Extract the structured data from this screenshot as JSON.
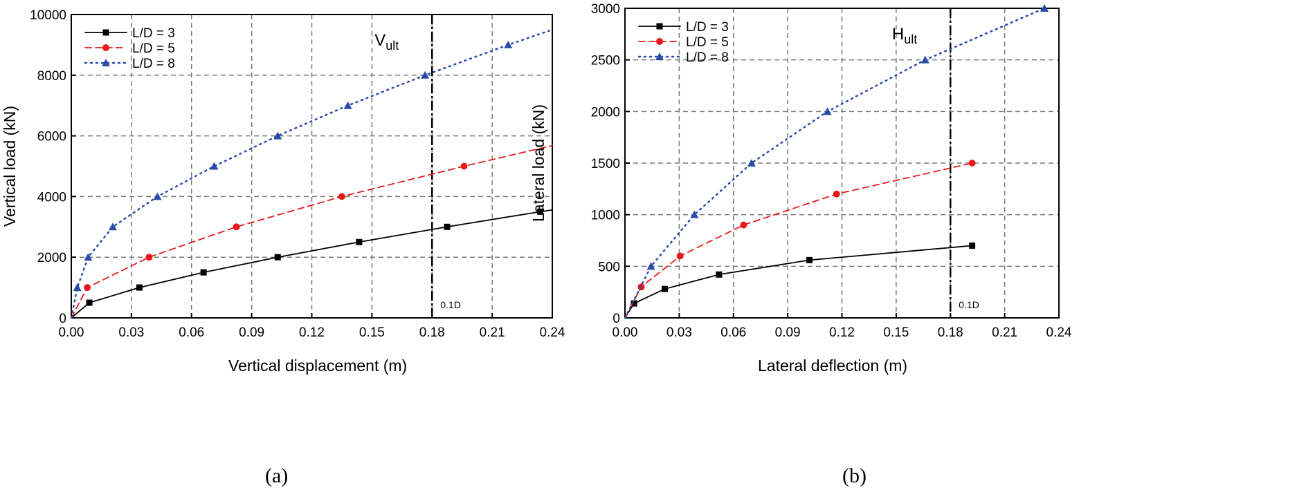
{
  "captions": [
    "(a)",
    "(b)"
  ],
  "chart_data": [
    {
      "type": "line",
      "xlabel": "Vertical displacement (m)",
      "ylabel": "Vertical load (kN)",
      "xlim": [
        0,
        0.24
      ],
      "ylim": [
        0,
        10000
      ],
      "xticks": [
        "0.00",
        "0.03",
        "0.06",
        "0.09",
        "0.12",
        "0.15",
        "0.18",
        "0.21",
        "0.24"
      ],
      "yticks": [
        "0",
        "2000",
        "4000",
        "6000",
        "8000",
        "10000"
      ],
      "grid": true,
      "legend": "top-left",
      "reference_line": {
        "x": 0.18,
        "label_main": "V",
        "label_sub": "ult",
        "bottom_label": "0.1D"
      },
      "series": [
        {
          "name": "L/D = 3",
          "color": "#000000",
          "marker": "square",
          "style": "solid",
          "x": [
            0,
            0.009,
            0.034,
            0.066,
            0.103,
            0.1436,
            0.1875,
            0.234
          ],
          "y": [
            0,
            500,
            1000,
            1500,
            2000,
            2500,
            3000,
            3500
          ],
          "end": [
            0.24,
            3560
          ]
        },
        {
          "name": "L/D = 5",
          "color": "#e8191b",
          "marker": "circle",
          "style": "dashed",
          "x": [
            0,
            0.008,
            0.0388,
            0.0824,
            0.135,
            0.196
          ],
          "y": [
            0,
            1000,
            2000,
            3000,
            4000,
            5000
          ],
          "end": [
            0.24,
            5680
          ]
        },
        {
          "name": "L/D = 8",
          "color": "#2a4aa8",
          "marker": "triangle",
          "style": "dotted",
          "x": [
            0,
            0.003,
            0.0084,
            0.0207,
            0.043,
            0.0713,
            0.103,
            0.138,
            0.1765,
            0.218
          ],
          "y": [
            0,
            1000,
            2000,
            3000,
            4000,
            5000,
            6000,
            7000,
            8000,
            9000
          ],
          "end": [
            0.24,
            9500
          ]
        }
      ]
    },
    {
      "type": "line",
      "xlabel": "Lateral deflection (m)",
      "ylabel": "Lateral load (kN)",
      "xlim": [
        0,
        0.24
      ],
      "ylim": [
        0,
        3000
      ],
      "xticks": [
        "0.00",
        "0.03",
        "0.06",
        "0.09",
        "0.12",
        "0.15",
        "0.18",
        "0.21",
        "0.24"
      ],
      "yticks": [
        "0",
        "500",
        "1000",
        "1500",
        "2000",
        "2500",
        "3000"
      ],
      "grid": true,
      "legend": "top-left",
      "reference_line": {
        "x": 0.18,
        "label_main": "H",
        "label_sub": "ult",
        "bottom_label": "0.1D"
      },
      "series": [
        {
          "name": "L/D = 3",
          "color": "#000000",
          "marker": "square",
          "style": "solid",
          "x": [
            0,
            0.005,
            0.022,
            0.052,
            0.102,
            0.192
          ],
          "y": [
            0,
            140,
            280,
            420,
            560,
            700
          ]
        },
        {
          "name": "L/D = 5",
          "color": "#e8191b",
          "marker": "circle",
          "style": "dashed",
          "x": [
            0,
            0.009,
            0.0305,
            0.0656,
            0.117,
            0.192
          ],
          "y": [
            0,
            300,
            600,
            900,
            1200,
            1500
          ]
        },
        {
          "name": "L/D = 8",
          "color": "#2a4aa8",
          "marker": "triangle",
          "style": "dotted",
          "x": [
            0,
            0.0144,
            0.0384,
            0.07,
            0.112,
            0.166,
            0.232
          ],
          "y": [
            0,
            500,
            1000,
            1500,
            2000,
            2500,
            3000
          ]
        }
      ]
    }
  ]
}
